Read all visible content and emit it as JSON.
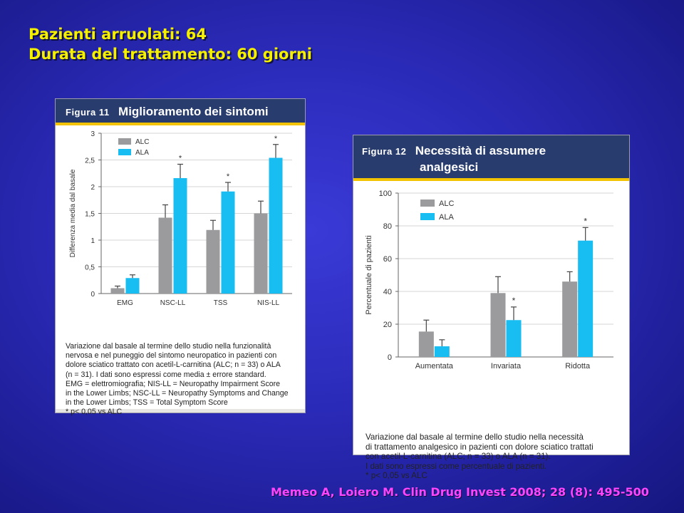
{
  "title_lines": [
    "Pazienti arruolati: 64",
    "Durata del trattamento: 60 giorni"
  ],
  "citation": "Memeo A, Loiero M. Clin Drug Invest 2008; 28 (8): 495-500",
  "colors": {
    "ALC": "#9b9a9c",
    "ALA": "#18bdf2",
    "header": "#283c6e",
    "accent": "#f3c300"
  },
  "chart_data": [
    {
      "type": "bar",
      "figure_label": "Figura 11",
      "title": "Miglioramento dei sintomi",
      "ylabel": "Differenza media dal basale",
      "xlabel": "",
      "categories": [
        "EMG",
        "NSC-LL",
        "TSS",
        "NIS-LL"
      ],
      "ylim": [
        0,
        3
      ],
      "yticks": [
        0,
        0.5,
        1,
        1.5,
        2,
        2.5,
        3
      ],
      "ytick_labels": [
        "0",
        "0,5",
        "1",
        "1,5",
        "2",
        "2,5",
        "3"
      ],
      "grid": true,
      "legend": "top-left",
      "series": [
        {
          "name": "ALC",
          "values": [
            0.1,
            1.42,
            1.19,
            1.5
          ],
          "errors": [
            0.04,
            0.24,
            0.18,
            0.23
          ]
        },
        {
          "name": "ALA",
          "values": [
            0.29,
            2.16,
            1.91,
            2.54
          ],
          "errors": [
            0.06,
            0.26,
            0.17,
            0.25
          ]
        }
      ],
      "annotations": [
        {
          "category": "NSC-LL",
          "series": "ALA",
          "text": "*"
        },
        {
          "category": "TSS",
          "series": "ALA",
          "text": "*"
        },
        {
          "category": "NIS-LL",
          "series": "ALA",
          "text": "*"
        }
      ],
      "caption_lines": [
        "Variazione dal basale al termine dello studio nella funzionalità",
        "nervosa e nel puneggio del sintomo neuropatico in pazienti con",
        "dolore sciatico trattato con acetil-L-carnitina (ALC; n = 33) o ALA",
        "(n = 31). I dati sono espressi come media ± errore standard.",
        "EMG = elettromiografia;    NIS-LL = Neuropathy Impairment Score",
        "in the Lower Limbs;   NSC-LL = Neuropathy Symptoms and Change",
        "in the Lower Limbs;   TSS = Total Symptom Score",
        "* p< 0,05 vs ALC"
      ]
    },
    {
      "type": "bar",
      "figure_label": "Figura 12",
      "title": "Necessità di assumere analgesici",
      "title_lines": [
        "Necessità di assumere",
        "analgesici"
      ],
      "ylabel": "Percentuale di pazienti",
      "xlabel": "",
      "categories": [
        "Aumentata",
        "Invariata",
        "Ridotta"
      ],
      "ylim": [
        0,
        100
      ],
      "yticks": [
        0,
        20,
        40,
        60,
        80,
        100
      ],
      "ytick_labels": [
        "0",
        "20",
        "40",
        "60",
        "80",
        "100"
      ],
      "grid": true,
      "legend": "top-left",
      "series": [
        {
          "name": "ALC",
          "values": [
            15.5,
            39,
            46
          ],
          "errors": [
            7,
            10,
            6
          ]
        },
        {
          "name": "ALA",
          "values": [
            6.5,
            22.5,
            71
          ],
          "errors": [
            4,
            8,
            8
          ]
        }
      ],
      "annotations": [
        {
          "category": "Invariata",
          "series": "ALA",
          "text": "*"
        },
        {
          "category": "Ridotta",
          "series": "ALA",
          "text": "*"
        }
      ],
      "caption_lines": [
        "Variazione dal basale al termine dello studio nella necessità",
        "di trattamento analgesico in pazienti con dolore sciatico trattati",
        "con acetil-L-carnitina (ALC; n = 33) o ALA (n = 31).",
        "I dati sono espressi come percentuale di pazienti.",
        "* p< 0,05 vs ALC"
      ]
    }
  ]
}
